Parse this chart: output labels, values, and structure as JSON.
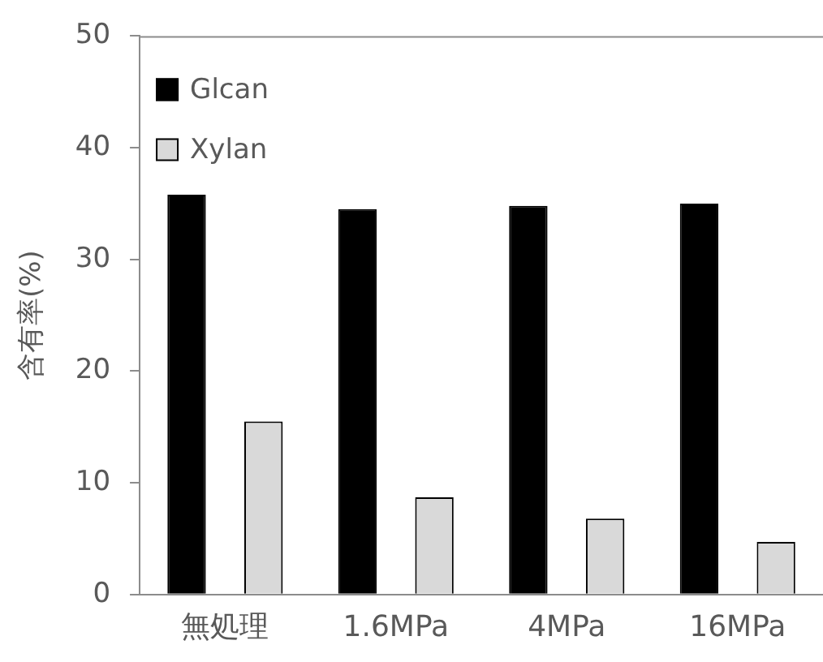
{
  "chart_data": {
    "type": "bar",
    "ylabel": "含有率(%)",
    "categories": [
      "無処理",
      "1.6MPa",
      "4MPa",
      "16MPa"
    ],
    "series": [
      {
        "name": "Glcan",
        "color": "#000000",
        "values": [
          35.8,
          34.5,
          34.8,
          35.0
        ]
      },
      {
        "name": "Xylan",
        "color": "#d9d9d9",
        "values": [
          15.5,
          8.7,
          6.8,
          4.7
        ]
      }
    ],
    "ylim": [
      0,
      50
    ],
    "yticks": [
      0,
      10,
      20,
      30,
      40,
      50
    ],
    "grid": false,
    "legend": "top left"
  }
}
